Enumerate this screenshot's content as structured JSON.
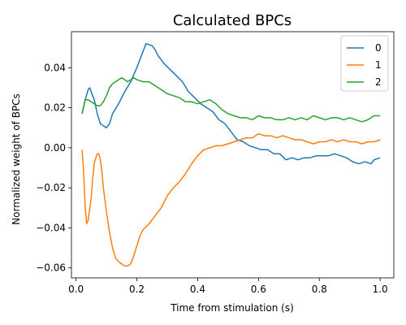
{
  "chart_data": {
    "type": "line",
    "title": "Calculated BPCs",
    "xlabel": "Time from stimulation (s)",
    "ylabel": "Normalized weight of BPCs",
    "xlim": [
      -0.015,
      1.045
    ],
    "ylim": [
      -0.065,
      0.058
    ],
    "xticks": [
      0.0,
      0.2,
      0.4,
      0.6,
      0.8,
      1.0
    ],
    "xtick_labels": [
      "0.0",
      "0.2",
      "0.4",
      "0.6",
      "0.8",
      "1.0"
    ],
    "yticks": [
      -0.06,
      -0.04,
      -0.02,
      0.0,
      0.02,
      0.04
    ],
    "ytick_labels": [
      "−0.06",
      "−0.04",
      "−0.02",
      "0.00",
      "0.02",
      "0.04"
    ],
    "grid": false,
    "legend_position": "top-right",
    "series": [
      {
        "name": "0",
        "color": "#1f77b4",
        "points": [
          [
            0.02,
            0.017
          ],
          [
            0.03,
            0.024
          ],
          [
            0.04,
            0.029
          ],
          [
            0.045,
            0.03
          ],
          [
            0.05,
            0.028
          ],
          [
            0.06,
            0.024
          ],
          [
            0.07,
            0.017
          ],
          [
            0.08,
            0.012
          ],
          [
            0.09,
            0.011
          ],
          [
            0.1,
            0.01
          ],
          [
            0.11,
            0.012
          ],
          [
            0.12,
            0.017
          ],
          [
            0.14,
            0.022
          ],
          [
            0.16,
            0.028
          ],
          [
            0.18,
            0.033
          ],
          [
            0.2,
            0.04
          ],
          [
            0.22,
            0.048
          ],
          [
            0.23,
            0.052
          ],
          [
            0.25,
            0.051
          ],
          [
            0.26,
            0.049
          ],
          [
            0.27,
            0.046
          ],
          [
            0.29,
            0.042
          ],
          [
            0.31,
            0.039
          ],
          [
            0.33,
            0.036
          ],
          [
            0.35,
            0.033
          ],
          [
            0.37,
            0.028
          ],
          [
            0.39,
            0.025
          ],
          [
            0.41,
            0.022
          ],
          [
            0.43,
            0.02
          ],
          [
            0.45,
            0.018
          ],
          [
            0.47,
            0.014
          ],
          [
            0.49,
            0.012
          ],
          [
            0.51,
            0.008
          ],
          [
            0.53,
            0.004
          ],
          [
            0.55,
            0.003
          ],
          [
            0.57,
            0.001
          ],
          [
            0.59,
            0.0
          ],
          [
            0.61,
            -0.001
          ],
          [
            0.63,
            -0.001
          ],
          [
            0.65,
            -0.003
          ],
          [
            0.67,
            -0.003
          ],
          [
            0.69,
            -0.006
          ],
          [
            0.71,
            -0.005
          ],
          [
            0.73,
            -0.006
          ],
          [
            0.75,
            -0.005
          ],
          [
            0.77,
            -0.005
          ],
          [
            0.79,
            -0.004
          ],
          [
            0.81,
            -0.004
          ],
          [
            0.83,
            -0.004
          ],
          [
            0.85,
            -0.003
          ],
          [
            0.87,
            -0.004
          ],
          [
            0.89,
            -0.005
          ],
          [
            0.91,
            -0.007
          ],
          [
            0.93,
            -0.008
          ],
          [
            0.95,
            -0.007
          ],
          [
            0.97,
            -0.008
          ],
          [
            0.98,
            -0.006
          ],
          [
            1.0,
            -0.005
          ]
        ]
      },
      {
        "name": "1",
        "color": "#ff7f0e",
        "points": [
          [
            0.02,
            -0.001
          ],
          [
            0.025,
            -0.012
          ],
          [
            0.03,
            -0.03
          ],
          [
            0.035,
            -0.038
          ],
          [
            0.04,
            -0.036
          ],
          [
            0.05,
            -0.025
          ],
          [
            0.055,
            -0.015
          ],
          [
            0.06,
            -0.008
          ],
          [
            0.065,
            -0.005
          ],
          [
            0.07,
            -0.003
          ],
          [
            0.075,
            -0.003
          ],
          [
            0.08,
            -0.006
          ],
          [
            0.085,
            -0.012
          ],
          [
            0.09,
            -0.02
          ],
          [
            0.1,
            -0.032
          ],
          [
            0.11,
            -0.042
          ],
          [
            0.12,
            -0.05
          ],
          [
            0.13,
            -0.055
          ],
          [
            0.14,
            -0.057
          ],
          [
            0.15,
            -0.058
          ],
          [
            0.16,
            -0.059
          ],
          [
            0.17,
            -0.059
          ],
          [
            0.18,
            -0.058
          ],
          [
            0.19,
            -0.054
          ],
          [
            0.2,
            -0.049
          ],
          [
            0.21,
            -0.044
          ],
          [
            0.22,
            -0.041
          ],
          [
            0.24,
            -0.038
          ],
          [
            0.26,
            -0.034
          ],
          [
            0.28,
            -0.03
          ],
          [
            0.3,
            -0.024
          ],
          [
            0.32,
            -0.02
          ],
          [
            0.34,
            -0.017
          ],
          [
            0.36,
            -0.013
          ],
          [
            0.38,
            -0.008
          ],
          [
            0.4,
            -0.004
          ],
          [
            0.42,
            -0.001
          ],
          [
            0.44,
            0.0
          ],
          [
            0.46,
            0.001
          ],
          [
            0.48,
            0.001
          ],
          [
            0.5,
            0.002
          ],
          [
            0.52,
            0.003
          ],
          [
            0.54,
            0.004
          ],
          [
            0.56,
            0.005
          ],
          [
            0.58,
            0.005
          ],
          [
            0.6,
            0.007
          ],
          [
            0.62,
            0.006
          ],
          [
            0.64,
            0.006
          ],
          [
            0.66,
            0.005
          ],
          [
            0.68,
            0.006
          ],
          [
            0.7,
            0.005
          ],
          [
            0.72,
            0.004
          ],
          [
            0.74,
            0.004
          ],
          [
            0.76,
            0.003
          ],
          [
            0.78,
            0.002
          ],
          [
            0.8,
            0.003
          ],
          [
            0.82,
            0.003
          ],
          [
            0.84,
            0.004
          ],
          [
            0.86,
            0.003
          ],
          [
            0.88,
            0.004
          ],
          [
            0.9,
            0.003
          ],
          [
            0.92,
            0.003
          ],
          [
            0.94,
            0.002
          ],
          [
            0.96,
            0.003
          ],
          [
            0.98,
            0.003
          ],
          [
            1.0,
            0.004
          ]
        ]
      },
      {
        "name": "2",
        "color": "#2ca02c",
        "points": [
          [
            0.02,
            0.017
          ],
          [
            0.03,
            0.024
          ],
          [
            0.04,
            0.024
          ],
          [
            0.05,
            0.023
          ],
          [
            0.06,
            0.022
          ],
          [
            0.07,
            0.021
          ],
          [
            0.08,
            0.021
          ],
          [
            0.09,
            0.023
          ],
          [
            0.1,
            0.026
          ],
          [
            0.11,
            0.03
          ],
          [
            0.12,
            0.032
          ],
          [
            0.13,
            0.033
          ],
          [
            0.14,
            0.034
          ],
          [
            0.15,
            0.035
          ],
          [
            0.16,
            0.034
          ],
          [
            0.17,
            0.033
          ],
          [
            0.18,
            0.034
          ],
          [
            0.19,
            0.035
          ],
          [
            0.2,
            0.034
          ],
          [
            0.22,
            0.033
          ],
          [
            0.24,
            0.033
          ],
          [
            0.26,
            0.031
          ],
          [
            0.28,
            0.029
          ],
          [
            0.3,
            0.027
          ],
          [
            0.32,
            0.026
          ],
          [
            0.34,
            0.025
          ],
          [
            0.36,
            0.023
          ],
          [
            0.38,
            0.023
          ],
          [
            0.4,
            0.022
          ],
          [
            0.42,
            0.023
          ],
          [
            0.44,
            0.024
          ],
          [
            0.46,
            0.022
          ],
          [
            0.48,
            0.019
          ],
          [
            0.5,
            0.017
          ],
          [
            0.52,
            0.016
          ],
          [
            0.54,
            0.015
          ],
          [
            0.56,
            0.015
          ],
          [
            0.58,
            0.014
          ],
          [
            0.6,
            0.016
          ],
          [
            0.62,
            0.015
          ],
          [
            0.64,
            0.015
          ],
          [
            0.66,
            0.014
          ],
          [
            0.68,
            0.014
          ],
          [
            0.7,
            0.015
          ],
          [
            0.72,
            0.014
          ],
          [
            0.74,
            0.015
          ],
          [
            0.76,
            0.014
          ],
          [
            0.78,
            0.016
          ],
          [
            0.8,
            0.015
          ],
          [
            0.82,
            0.014
          ],
          [
            0.84,
            0.015
          ],
          [
            0.86,
            0.015
          ],
          [
            0.88,
            0.014
          ],
          [
            0.9,
            0.015
          ],
          [
            0.92,
            0.014
          ],
          [
            0.94,
            0.013
          ],
          [
            0.96,
            0.014
          ],
          [
            0.98,
            0.016
          ],
          [
            1.0,
            0.016
          ]
        ]
      }
    ]
  }
}
